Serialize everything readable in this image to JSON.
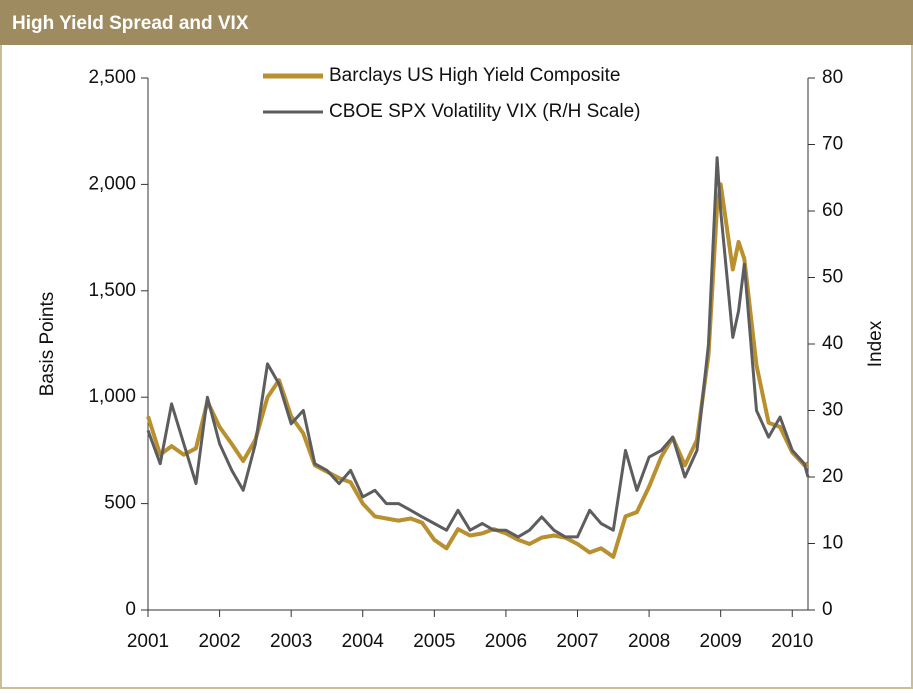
{
  "chart_data": {
    "type": "line",
    "title": "High Yield Spread and VIX",
    "ylabel": "Basis Points",
    "y2label": "Index",
    "x": [
      2001.0,
      2001.17,
      2001.33,
      2001.5,
      2001.67,
      2001.83,
      2002.0,
      2002.17,
      2002.33,
      2002.5,
      2002.67,
      2002.83,
      2003.0,
      2003.17,
      2003.33,
      2003.5,
      2003.67,
      2003.83,
      2004.0,
      2004.17,
      2004.33,
      2004.5,
      2004.67,
      2004.83,
      2005.0,
      2005.17,
      2005.33,
      2005.5,
      2005.67,
      2005.83,
      2006.0,
      2006.17,
      2006.33,
      2006.5,
      2006.67,
      2006.83,
      2007.0,
      2007.17,
      2007.33,
      2007.5,
      2007.67,
      2007.83,
      2008.0,
      2008.17,
      2008.33,
      2008.5,
      2008.67,
      2008.83,
      2008.95,
      2009.0,
      2009.17,
      2009.25,
      2009.33,
      2009.5,
      2009.67,
      2009.83,
      2010.0,
      2010.17,
      2010.22
    ],
    "series": [
      {
        "name": "Barclays US High Yield Composite",
        "color": "#b8902f",
        "axis": "y",
        "values": [
          910,
          730,
          770,
          730,
          760,
          980,
          860,
          780,
          700,
          800,
          1000,
          1080,
          910,
          830,
          680,
          650,
          620,
          600,
          500,
          440,
          430,
          420,
          430,
          410,
          330,
          290,
          380,
          350,
          360,
          380,
          360,
          330,
          310,
          340,
          350,
          340,
          310,
          270,
          290,
          250,
          440,
          460,
          580,
          720,
          810,
          680,
          800,
          1200,
          1900,
          2000,
          1600,
          1730,
          1650,
          1150,
          880,
          860,
          740,
          680,
          690
        ]
      },
      {
        "name": "CBOE SPX Volatility VIX (R/H Scale)",
        "color": "#5d5d5f",
        "axis": "y2",
        "values": [
          27,
          22,
          31,
          25,
          19,
          32,
          25,
          21,
          18,
          25,
          37,
          34,
          28,
          30,
          22,
          21,
          19,
          21,
          17,
          18,
          16,
          16,
          15,
          14,
          13,
          12,
          15,
          12,
          13,
          12,
          12,
          11,
          12,
          14,
          12,
          11,
          11,
          15,
          13,
          12,
          24,
          18,
          23,
          24,
          26,
          20,
          24,
          40,
          68,
          60,
          41,
          45,
          52,
          30,
          26,
          29,
          24,
          22,
          20
        ]
      }
    ],
    "xlim": [
      2001,
      2010.22
    ],
    "xticks": [
      2001,
      2002,
      2003,
      2004,
      2005,
      2006,
      2007,
      2008,
      2009,
      2010
    ],
    "ylim": [
      0,
      2500
    ],
    "yticks": [
      0,
      500,
      {
        "value": 1000,
        "label": "1,000"
      },
      {
        "value": 1500,
        "label": "1,500"
      },
      {
        "value": 2000,
        "label": "2,000"
      },
      {
        "value": 2500,
        "label": "2,500"
      }
    ],
    "y2lim": [
      0,
      80
    ],
    "y2ticks": [
      0,
      10,
      20,
      30,
      40,
      50,
      60,
      70,
      80
    ],
    "legend": "top",
    "grid": false
  }
}
